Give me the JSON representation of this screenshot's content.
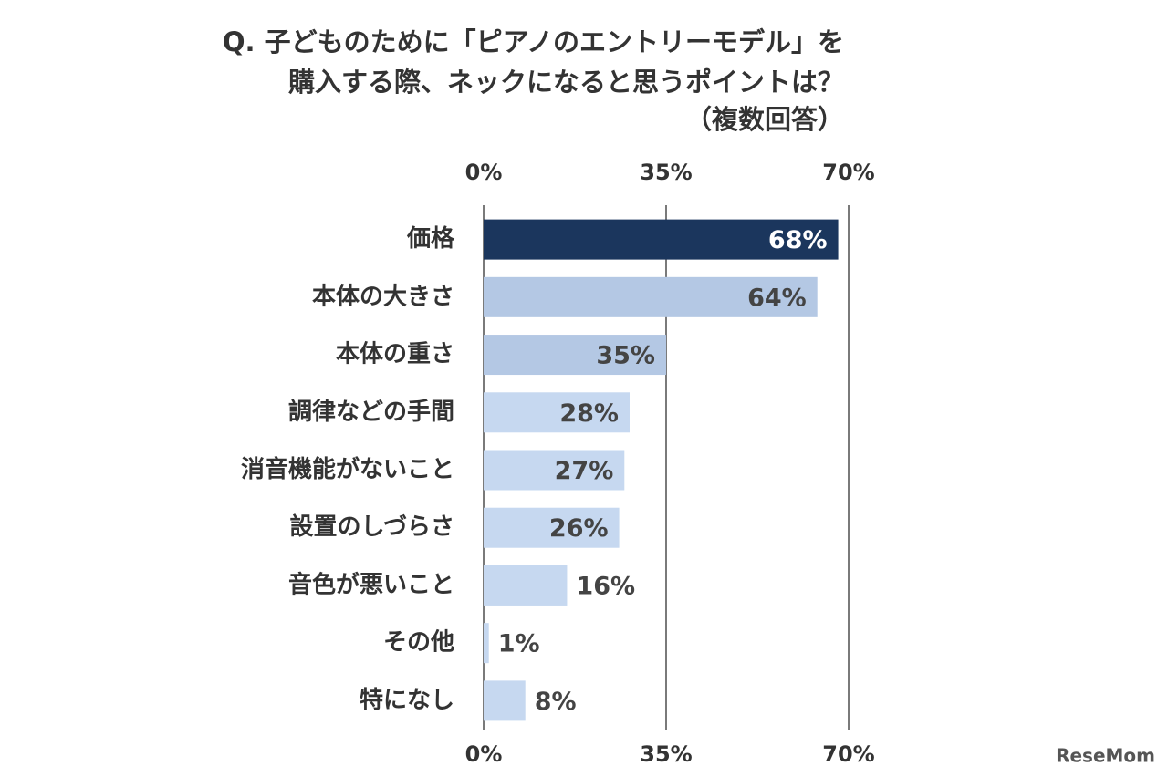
{
  "chart_data": {
    "type": "hbar",
    "title": [
      "Q. 子どものために「ピアノのエントリーモデル」を",
      "購入する際、ネックになると思うポイントは？",
      "（複数回答）"
    ],
    "categories": [
      "価格",
      "本体の大きさ",
      "本体の重さ",
      "調律などの手間",
      "消音機能がないこと",
      "設置のしづらさ",
      "音色が悪いこと",
      "その他",
      "特になし"
    ],
    "values": [
      68,
      64,
      35,
      28,
      27,
      26,
      16,
      1,
      8
    ],
    "value_labels": [
      "68%",
      "64%",
      "35%",
      "28%",
      "27%",
      "26%",
      "16%",
      "1%",
      "8%"
    ],
    "colors": [
      "#1b365d",
      "#b4c8e4",
      "#b4c8e4",
      "#c6d8f0",
      "#c6d8f0",
      "#c6d8f0",
      "#c6d8f0",
      "#c6d8f0",
      "#c6d8f0"
    ],
    "xlim": [
      0,
      70
    ],
    "xticks": [
      {
        "value": 0,
        "label": "0%"
      },
      {
        "value": 35,
        "label": "35%"
      },
      {
        "value": 70,
        "label": "70%"
      }
    ],
    "grid": true,
    "watermark": "ReseMom"
  }
}
